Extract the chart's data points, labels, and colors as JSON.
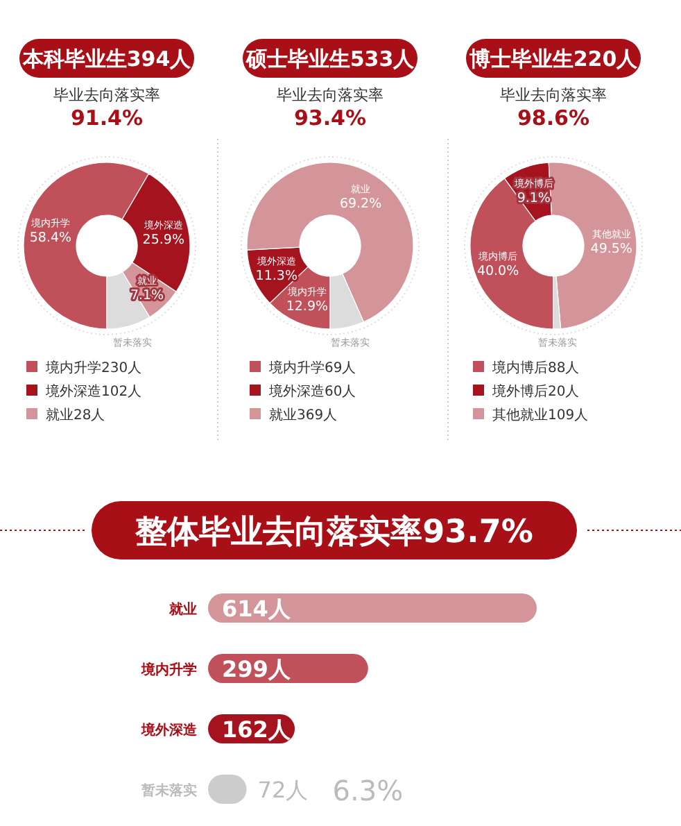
{
  "chart_data": [
    {
      "type": "donut",
      "title": "本科毕业生394人",
      "subtitle": "毕业去向落实率",
      "annotations": [
        "91.4%",
        "境内升学230人",
        "境外深造102人",
        "就业28人"
      ],
      "categories": [
        "境内升学",
        "境外深造",
        "就业",
        "暂未落实"
      ],
      "values": [
        58.4,
        25.9,
        7.1,
        8.6
      ],
      "value_labels": [
        "58.4%",
        "25.9%",
        "7.1%",
        null
      ],
      "colors": [
        "#c0505a",
        "#a5141e",
        "#d4959a",
        "#dcdcdc"
      ]
    },
    {
      "type": "donut",
      "title": "硕士毕业生533人",
      "subtitle": "毕业去向落实率",
      "annotations": [
        "93.4%",
        "境内升学69人",
        "境外深造60人",
        "就业369人"
      ],
      "categories": [
        "境内升学",
        "境外深造",
        "就业",
        "暂未落实"
      ],
      "values": [
        12.9,
        11.3,
        69.2,
        6.6
      ],
      "value_labels": [
        "12.9%",
        "11.3%",
        "69.2%",
        null
      ],
      "colors": [
        "#c0505a",
        "#a5141e",
        "#d4959a",
        "#dcdcdc"
      ]
    },
    {
      "type": "donut",
      "title": "博士毕业生220人",
      "subtitle": "毕业去向落实率",
      "annotations": [
        "98.6%",
        "境内博后88人",
        "境外博后20人",
        "其他就业109人"
      ],
      "categories": [
        "境内博后",
        "境外博后",
        "其他就业",
        "暂未落实"
      ],
      "values": [
        40.0,
        9.1,
        49.5,
        1.4
      ],
      "value_labels": [
        "40.0%",
        "9.1%",
        "49.5%",
        null
      ],
      "colors": [
        "#c0505a",
        "#a5141e",
        "#d4959a",
        "#dcdcdc"
      ]
    },
    {
      "type": "bar",
      "orientation": "horizontal",
      "title": "整体毕业去向落实率93.7%",
      "annotations": [
        "6.3%"
      ],
      "categories": [
        "就业",
        "境内升学",
        "境外深造",
        "暂未落实"
      ],
      "values": [
        614,
        299,
        162,
        72
      ],
      "value_labels": [
        "614人",
        "299人",
        "162人",
        "72人"
      ],
      "colors": [
        "#d4959a",
        "#c0505a",
        "#a5141e",
        "#cccccc"
      ]
    }
  ]
}
